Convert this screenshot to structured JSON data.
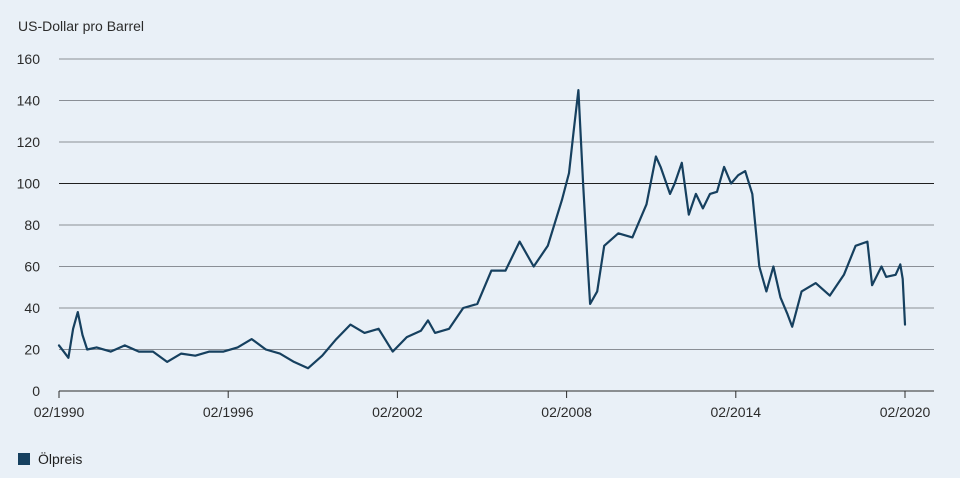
{
  "chart_data": {
    "type": "line",
    "title": "",
    "ylabel": "US-Dollar pro Barrel",
    "xlabel": "",
    "ylim": [
      0,
      160
    ],
    "yticks": [
      0,
      20,
      40,
      60,
      80,
      100,
      120,
      140,
      160
    ],
    "xlim": [
      "1990-02",
      "2020-02"
    ],
    "xticks": [
      "02/1990",
      "02/1996",
      "02/2002",
      "02/2008",
      "02/2014",
      "02/2020"
    ],
    "grid": true,
    "legend_position": "bottom-left",
    "series": [
      {
        "name": "Ölpreis",
        "color": "#16405f",
        "x": [
          "1990-02",
          "1990-04",
          "1990-06",
          "1990-08",
          "1990-10",
          "1990-12",
          "1991-02",
          "1991-06",
          "1991-12",
          "1992-06",
          "1992-12",
          "1993-06",
          "1993-12",
          "1994-06",
          "1994-12",
          "1995-06",
          "1995-12",
          "1996-06",
          "1996-12",
          "1997-06",
          "1997-12",
          "1998-06",
          "1998-12",
          "1999-06",
          "1999-12",
          "2000-06",
          "2000-12",
          "2001-06",
          "2001-12",
          "2002-06",
          "2002-12",
          "2003-03",
          "2003-06",
          "2003-12",
          "2004-06",
          "2004-12",
          "2005-06",
          "2005-12",
          "2006-06",
          "2006-12",
          "2007-06",
          "2007-12",
          "2008-03",
          "2008-05",
          "2008-07",
          "2008-09",
          "2008-11",
          "2008-12",
          "2009-03",
          "2009-06",
          "2009-12",
          "2010-06",
          "2010-12",
          "2011-04",
          "2011-06",
          "2011-10",
          "2011-12",
          "2012-03",
          "2012-06",
          "2012-09",
          "2012-12",
          "2013-03",
          "2013-06",
          "2013-09",
          "2013-12",
          "2014-03",
          "2014-06",
          "2014-09",
          "2014-12",
          "2015-03",
          "2015-06",
          "2015-09",
          "2015-12",
          "2016-02",
          "2016-06",
          "2016-12",
          "2017-06",
          "2017-12",
          "2018-05",
          "2018-10",
          "2018-12",
          "2019-04",
          "2019-06",
          "2019-10",
          "2019-12",
          "2020-01",
          "2020-02"
        ],
        "y": [
          22,
          19,
          16,
          30,
          38,
          27,
          20,
          21,
          19,
          22,
          19,
          19,
          14,
          18,
          17,
          19,
          19,
          21,
          25,
          20,
          18,
          14,
          11,
          17,
          25,
          32,
          28,
          30,
          19,
          26,
          29,
          34,
          28,
          30,
          40,
          42,
          58,
          58,
          72,
          60,
          70,
          92,
          105,
          125,
          145,
          100,
          60,
          42,
          48,
          70,
          76,
          74,
          90,
          113,
          108,
          95,
          100,
          110,
          85,
          95,
          88,
          95,
          96,
          108,
          100,
          104,
          106,
          95,
          60,
          48,
          60,
          45,
          37,
          31,
          48,
          52,
          46,
          56,
          70,
          72,
          51,
          60,
          55,
          56,
          61,
          54,
          32
        ]
      }
    ]
  },
  "legend": {
    "label": "Ölpreis",
    "color": "#16405f"
  }
}
